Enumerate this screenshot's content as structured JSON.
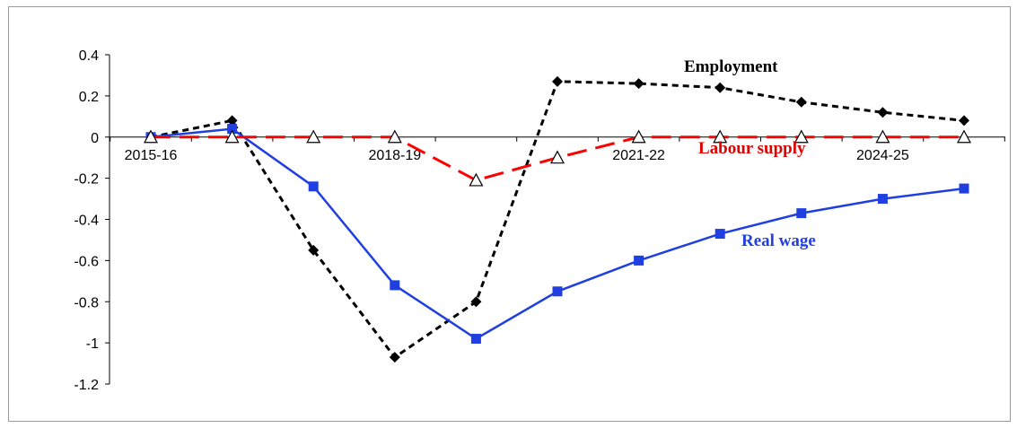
{
  "chart_data": {
    "type": "line",
    "title": "",
    "xlabel": "",
    "ylabel": "",
    "x": [
      "2015-16",
      "2016-17",
      "2017-18",
      "2018-19",
      "2019-20",
      "2020-21",
      "2021-22",
      "2022-23",
      "2023-24",
      "2024-25",
      "2025-26"
    ],
    "x_tick_labels": [
      {
        "index": 0,
        "label": "2015-16"
      },
      {
        "index": 3,
        "label": "2018-19"
      },
      {
        "index": 6,
        "label": "2021-22"
      },
      {
        "index": 9,
        "label": "2024-25"
      }
    ],
    "ylim": [
      -1.2,
      0.4
    ],
    "y_ticks": [
      0.4,
      0.2,
      0,
      -0.2,
      -0.4,
      -0.6,
      -0.8,
      -1,
      -1.2
    ],
    "y_tick_labels": [
      "0.4",
      "0.2",
      "0",
      "-0.2",
      "-0.4",
      "-0.6",
      "-0.8",
      "-1",
      "-1.2"
    ],
    "grid": false,
    "series": [
      {
        "name": "Employment",
        "color": "#000000",
        "line_style": "short-dash",
        "marker": "diamond",
        "values": [
          0,
          0.08,
          -0.55,
          -1.07,
          -0.8,
          0.27,
          0.26,
          0.24,
          0.17,
          0.12,
          0.08
        ]
      },
      {
        "name": "Labour supply",
        "color": "#ff0000",
        "line_style": "long-dash",
        "marker": "open-triangle",
        "values": [
          0,
          0,
          0,
          0,
          -0.21,
          -0.1,
          0,
          0,
          0,
          0,
          0
        ]
      },
      {
        "name": "Real wage",
        "color": "#1f3fe0",
        "line_style": "solid",
        "marker": "square",
        "values": [
          0,
          0.04,
          -0.24,
          -0.72,
          -0.98,
          -0.75,
          -0.6,
          -0.47,
          -0.37,
          -0.3,
          -0.25
        ]
      }
    ]
  }
}
